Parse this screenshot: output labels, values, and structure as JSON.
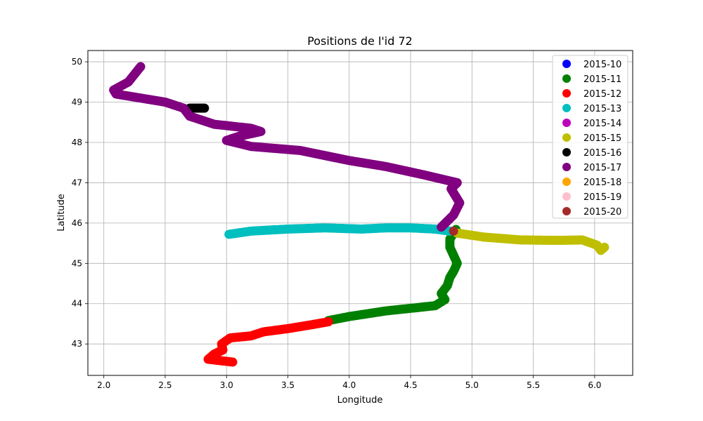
{
  "chart_data": {
    "type": "scatter",
    "title": "Positions de l'id 72",
    "xlabel": "Longitude",
    "ylabel": "Latitude",
    "xlim": [
      1.87,
      6.31
    ],
    "ylim": [
      42.22,
      50.28
    ],
    "xticks": [
      2.0,
      2.5,
      3.0,
      3.5,
      4.0,
      4.5,
      5.0,
      5.5,
      6.0
    ],
    "yticks": [
      43,
      44,
      45,
      46,
      47,
      48,
      49,
      50
    ],
    "x_tick_labels": [
      "2.0",
      "2.5",
      "3.0",
      "3.5",
      "4.0",
      "4.5",
      "5.0",
      "5.5",
      "6.0"
    ],
    "y_tick_labels": [
      "43",
      "44",
      "45",
      "46",
      "47",
      "48",
      "49",
      "50"
    ],
    "grid": true,
    "legend_position": "top-right",
    "series": [
      {
        "name": "2015-10",
        "color": "#0000ff",
        "points": []
      },
      {
        "name": "2015-11",
        "color": "#008000",
        "points": [
          [
            3.83,
            43.58
          ],
          [
            4.0,
            43.68
          ],
          [
            4.3,
            43.82
          ],
          [
            4.55,
            43.9
          ],
          [
            4.7,
            43.95
          ],
          [
            4.78,
            44.1
          ],
          [
            4.75,
            44.25
          ],
          [
            4.8,
            44.45
          ],
          [
            4.82,
            44.65
          ],
          [
            4.85,
            44.8
          ],
          [
            4.88,
            45.0
          ],
          [
            4.85,
            45.2
          ],
          [
            4.82,
            45.4
          ],
          [
            4.82,
            45.6
          ],
          [
            4.87,
            45.84
          ]
        ]
      },
      {
        "name": "2015-12",
        "color": "#ff0000",
        "points": [
          [
            3.05,
            42.55
          ],
          [
            2.85,
            42.62
          ],
          [
            2.9,
            42.75
          ],
          [
            2.97,
            42.85
          ],
          [
            2.96,
            43.0
          ],
          [
            3.03,
            43.15
          ],
          [
            3.2,
            43.2
          ],
          [
            3.3,
            43.3
          ],
          [
            3.5,
            43.38
          ],
          [
            3.7,
            43.48
          ],
          [
            3.83,
            43.55
          ]
        ]
      },
      {
        "name": "2015-13",
        "color": "#00bfbf",
        "points": [
          [
            3.02,
            45.72
          ],
          [
            3.2,
            45.8
          ],
          [
            3.5,
            45.85
          ],
          [
            3.8,
            45.88
          ],
          [
            4.1,
            45.85
          ],
          [
            4.3,
            45.88
          ],
          [
            4.5,
            45.88
          ],
          [
            4.7,
            45.85
          ],
          [
            4.82,
            45.8
          ]
        ]
      },
      {
        "name": "2015-14",
        "color": "#bf00bf",
        "points": []
      },
      {
        "name": "2015-15",
        "color": "#bfbf00",
        "points": [
          [
            4.88,
            45.75
          ],
          [
            5.1,
            45.65
          ],
          [
            5.4,
            45.58
          ],
          [
            5.7,
            45.57
          ],
          [
            5.9,
            45.58
          ],
          [
            6.02,
            45.45
          ],
          [
            6.05,
            45.32
          ],
          [
            6.08,
            45.4
          ]
        ]
      },
      {
        "name": "2015-16",
        "color": "#000000",
        "points": [
          [
            2.7,
            48.85
          ],
          [
            2.78,
            48.85
          ],
          [
            2.82,
            48.85
          ]
        ]
      },
      {
        "name": "2015-17",
        "color": "#800080",
        "points": [
          [
            4.75,
            45.9
          ],
          [
            4.85,
            46.2
          ],
          [
            4.9,
            46.5
          ],
          [
            4.83,
            46.85
          ],
          [
            4.88,
            47.0
          ],
          [
            4.6,
            47.2
          ],
          [
            4.3,
            47.4
          ],
          [
            4.0,
            47.55
          ],
          [
            3.6,
            47.8
          ],
          [
            3.2,
            47.9
          ],
          [
            3.0,
            48.05
          ],
          [
            3.1,
            48.15
          ],
          [
            3.28,
            48.27
          ],
          [
            3.2,
            48.35
          ],
          [
            2.9,
            48.45
          ],
          [
            2.7,
            48.65
          ],
          [
            2.65,
            48.85
          ],
          [
            2.5,
            49.0
          ],
          [
            2.3,
            49.1
          ],
          [
            2.1,
            49.2
          ],
          [
            2.08,
            49.3
          ],
          [
            2.2,
            49.5
          ],
          [
            2.3,
            49.88
          ]
        ]
      },
      {
        "name": "2015-18",
        "color": "#ffa500",
        "points": []
      },
      {
        "name": "2015-19",
        "color": "#ffc0cb",
        "points": []
      },
      {
        "name": "2015-20",
        "color": "#a52a2a",
        "points": [
          [
            4.85,
            45.8
          ]
        ]
      }
    ]
  }
}
